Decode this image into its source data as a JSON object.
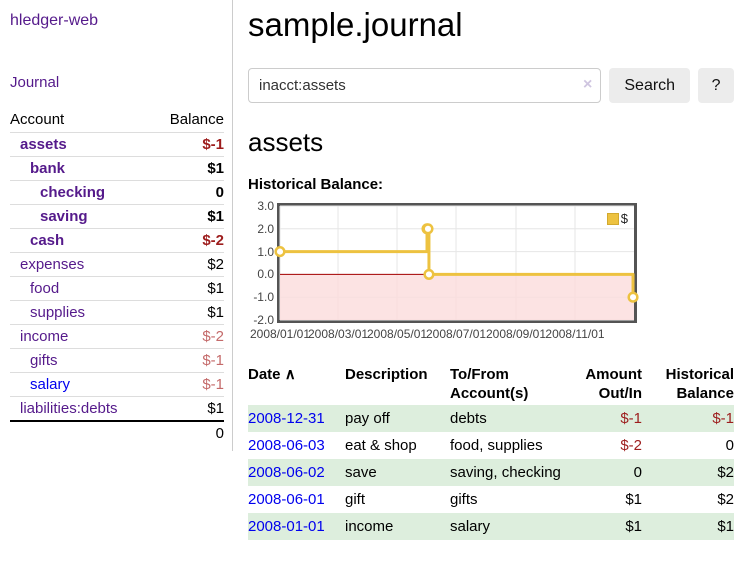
{
  "app": {
    "brand": "hledger-web",
    "nav_journal": "Journal"
  },
  "sidebar": {
    "table_headers": {
      "account": "Account",
      "balance": "Balance"
    },
    "accounts": [
      {
        "name": "assets",
        "balance": "$-1",
        "level": 1,
        "bold": true,
        "name_style": "purple",
        "balance_style": "negstrong"
      },
      {
        "name": "bank",
        "balance": "$1",
        "level": 2,
        "bold": true,
        "name_style": "purple",
        "balance_style": ""
      },
      {
        "name": "checking",
        "balance": "0",
        "level": 3,
        "bold": true,
        "name_style": "purple",
        "balance_style": ""
      },
      {
        "name": "saving",
        "balance": "$1",
        "level": 3,
        "bold": true,
        "name_style": "purple",
        "balance_style": ""
      },
      {
        "name": "cash",
        "balance": "$-2",
        "level": 2,
        "bold": true,
        "name_style": "purple",
        "balance_style": "negstrong"
      },
      {
        "name": "expenses",
        "balance": "$2",
        "level": 1,
        "bold": false,
        "name_style": "purple",
        "balance_style": ""
      },
      {
        "name": "food",
        "balance": "$1",
        "level": 2,
        "bold": false,
        "name_style": "purple",
        "balance_style": ""
      },
      {
        "name": "supplies",
        "balance": "$1",
        "level": 2,
        "bold": false,
        "name_style": "purple",
        "balance_style": ""
      },
      {
        "name": "income",
        "balance": "$-2",
        "level": 1,
        "bold": false,
        "name_style": "purple",
        "balance_style": "negsoft"
      },
      {
        "name": "gifts",
        "balance": "$-1",
        "level": 2,
        "bold": false,
        "name_style": "purple",
        "balance_style": "negsoft"
      },
      {
        "name": "salary",
        "balance": "$-1",
        "level": 2,
        "bold": false,
        "name_style": "blue",
        "balance_style": "negsoft"
      },
      {
        "name": "liabilities:debts",
        "balance": "$1",
        "level": 1,
        "bold": false,
        "name_style": "purple",
        "balance_style": ""
      }
    ],
    "total": "0"
  },
  "header": {
    "title": "sample.journal"
  },
  "search": {
    "value": "inacct:assets",
    "clear_label": "×",
    "button": "Search",
    "help_button": "?"
  },
  "account_page": {
    "heading": "assets",
    "chart_label": "Historical Balance:"
  },
  "chart_data": {
    "type": "line",
    "title": "Historical Balance:",
    "series": [
      {
        "name": "$",
        "color": "#edc240",
        "steps": true,
        "points": [
          [
            "2008-01-01",
            1
          ],
          [
            "2008-06-01",
            2
          ],
          [
            "2008-06-02",
            2
          ],
          [
            "2008-06-03",
            0
          ],
          [
            "2008-12-31",
            -1
          ]
        ]
      }
    ],
    "x_range": [
      "2008-01-01",
      "2009-01-01"
    ],
    "ylim": [
      -2,
      3
    ],
    "y_ticks": [
      3.0,
      2.0,
      1.0,
      0.0,
      -1.0,
      -2.0
    ],
    "x_ticks": [
      "2008/01/01",
      "2008/03/01",
      "2008/05/01",
      "2008/07/01",
      "2008/09/01",
      "2008/11/01"
    ],
    "grid": true,
    "grid_color": "#e6e6e6",
    "border_color": "#545454",
    "zero_line_color": "#a40000",
    "negative_region_color": "#fbdcdc",
    "legend": {
      "position": "top-right",
      "label": "$"
    }
  },
  "transactions": {
    "headers": {
      "date": "Date",
      "sort_indicator": "∧",
      "description": "Description",
      "accounts_l1": "To/From",
      "accounts_l2": "Account(s)",
      "amount_l1": "Amount",
      "amount_l2": "Out/In",
      "balance_l1": "Historical",
      "balance_l2": "Balance"
    },
    "rows": [
      {
        "date": "2008-12-31",
        "description": "pay off",
        "accounts": "debts",
        "amount": "$-1",
        "amount_style": "neg",
        "balance": "$-1",
        "balance_style": "neg"
      },
      {
        "date": "2008-06-03",
        "description": "eat & shop",
        "accounts": "food, supplies",
        "amount": "$-2",
        "amount_style": "neg",
        "balance": "0",
        "balance_style": ""
      },
      {
        "date": "2008-06-02",
        "description": "save",
        "accounts": "saving, checking",
        "amount": "0",
        "amount_style": "",
        "balance": "$2",
        "balance_style": ""
      },
      {
        "date": "2008-06-01",
        "description": "gift",
        "accounts": "gifts",
        "amount": "$1",
        "amount_style": "",
        "balance": "$2",
        "balance_style": ""
      },
      {
        "date": "2008-01-01",
        "description": "income",
        "accounts": "salary",
        "amount": "$1",
        "amount_style": "",
        "balance": "$1",
        "balance_style": ""
      }
    ]
  }
}
